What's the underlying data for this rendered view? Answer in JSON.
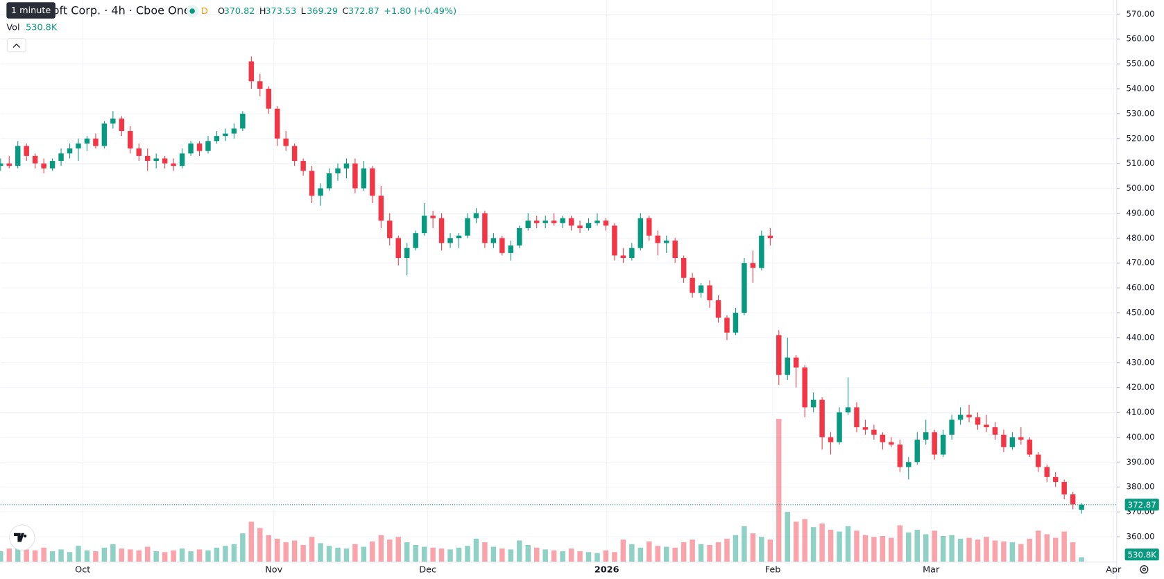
{
  "chart_data": {
    "type": "candlestick",
    "title": "Microsoft Corp. · 4h · Cboe One",
    "tooltip": "1 minute",
    "badge": "D",
    "ohlc_labels": [
      "O",
      "H",
      "L",
      "C"
    ],
    "change": "+1.80 (+0.49%)",
    "up_color": "#089981",
    "down_color": "#f23645",
    "open": [
      509,
      510,
      509,
      517,
      513,
      510,
      508,
      511,
      514,
      516,
      518,
      520,
      517,
      526,
      528,
      523,
      516,
      513,
      511,
      512,
      510,
      509,
      514,
      518,
      515,
      519,
      521,
      522,
      524,
      551,
      543,
      540,
      532,
      520,
      517,
      511,
      507,
      497,
      500,
      506,
      508,
      510,
      500,
      508,
      497,
      487,
      480,
      472,
      476,
      482,
      489,
      488,
      478,
      480,
      481,
      488,
      490,
      478,
      480,
      474,
      477,
      484,
      487,
      486,
      487,
      486,
      488,
      485,
      484,
      486,
      487,
      485,
      473,
      472,
      476,
      488,
      481,
      478,
      479,
      472,
      464,
      458,
      461,
      455,
      448,
      442,
      450,
      470,
      468,
      481,
      441,
      425,
      432,
      428,
      412,
      415,
      400,
      398,
      410,
      412,
      404,
      403,
      401,
      398,
      397,
      388,
      390,
      399,
      402,
      393,
      401,
      407,
      409,
      408,
      405,
      404,
      401,
      396,
      400,
      399,
      393,
      388,
      384,
      382,
      377,
      370.82
    ],
    "high": [
      512,
      513,
      519,
      518,
      514,
      512,
      512,
      516,
      518,
      520,
      521,
      522,
      527,
      531,
      529,
      525,
      518,
      516,
      514,
      513,
      512,
      516,
      519,
      519,
      521,
      523,
      524,
      526,
      531,
      553,
      546,
      541,
      533,
      523,
      518,
      512,
      509,
      502,
      508,
      510,
      512,
      512,
      511,
      509,
      501,
      490,
      481,
      478,
      483,
      494,
      491,
      490,
      482,
      482,
      490,
      492,
      491,
      482,
      481,
      479,
      485,
      490,
      489,
      489,
      490,
      489,
      489,
      487,
      488,
      490,
      488,
      486,
      476,
      478,
      490,
      489,
      483,
      481,
      480,
      473,
      466,
      462,
      463,
      457,
      449,
      452,
      472,
      475,
      483,
      484,
      443,
      440,
      433,
      429,
      418,
      416,
      402,
      412,
      424,
      414,
      407,
      405,
      402,
      400,
      399,
      392,
      402,
      407,
      403,
      403,
      409,
      412,
      413,
      410,
      409,
      406,
      403,
      402,
      404,
      400,
      394,
      389,
      386,
      383,
      378,
      373.53
    ],
    "low": [
      507,
      508,
      508,
      511,
      508,
      506,
      507,
      509,
      512,
      511,
      515,
      516,
      516,
      524,
      521,
      514,
      511,
      507,
      508,
      508,
      507,
      508,
      513,
      513,
      514,
      518,
      519,
      520,
      523,
      540,
      537,
      530,
      517,
      515,
      509,
      505,
      494,
      493,
      499,
      503,
      504,
      498,
      499,
      494,
      484,
      477,
      469,
      465,
      475,
      481,
      484,
      475,
      476,
      476,
      480,
      486,
      476,
      476,
      473,
      471,
      476,
      483,
      484,
      484,
      485,
      484,
      483,
      482,
      483,
      485,
      483,
      471,
      470,
      471,
      475,
      479,
      473,
      474,
      470,
      462,
      456,
      456,
      452,
      446,
      439,
      441,
      449,
      462,
      467,
      477,
      421,
      423,
      420,
      408,
      410,
      395,
      393,
      397,
      409,
      402,
      401,
      399,
      395,
      396,
      386,
      383,
      389,
      397,
      391,
      392,
      399,
      405,
      406,
      403,
      402,
      399,
      394,
      395,
      397,
      392,
      386,
      382,
      380,
      375,
      371,
      369.29
    ],
    "close": [
      510,
      509,
      517,
      513,
      510,
      508,
      511,
      514,
      516,
      518,
      520,
      517,
      526,
      528,
      523,
      516,
      513,
      511,
      512,
      510,
      509,
      514,
      518,
      515,
      519,
      521,
      522,
      524,
      530,
      543,
      540,
      532,
      520,
      517,
      511,
      507,
      497,
      500,
      506,
      508,
      510,
      500,
      508,
      497,
      487,
      480,
      472,
      476,
      482,
      489,
      488,
      478,
      480,
      481,
      488,
      490,
      478,
      480,
      474,
      477,
      484,
      487,
      486,
      487,
      486,
      488,
      485,
      484,
      486,
      487,
      485,
      473,
      472,
      476,
      488,
      481,
      478,
      479,
      472,
      464,
      458,
      461,
      455,
      448,
      442,
      450,
      470,
      468,
      481,
      480,
      425,
      432,
      428,
      412,
      415,
      400,
      398,
      410,
      412,
      404,
      403,
      401,
      398,
      397,
      388,
      390,
      399,
      402,
      393,
      401,
      407,
      409,
      408,
      405,
      404,
      401,
      396,
      400,
      399,
      393,
      388,
      384,
      382,
      377,
      373,
      372.87
    ],
    "volume": {
      "name": "Vol",
      "last_label": "530.8K",
      "values": [
        1200,
        1500,
        2100,
        1400,
        1300,
        1600,
        1200,
        1400,
        1100,
        1800,
        1300,
        1200,
        1600,
        2000,
        1500,
        1400,
        1300,
        1700,
        1200,
        1100,
        1300,
        1500,
        1200,
        1400,
        1300,
        1600,
        1800,
        2000,
        3200,
        4500,
        3800,
        3000,
        2600,
        2200,
        2400,
        1900,
        2800,
        2100,
        1800,
        1600,
        1500,
        2000,
        1700,
        2300,
        3000,
        2500,
        2800,
        2200,
        1900,
        1700,
        1600,
        1500,
        1400,
        1600,
        1800,
        2600,
        2200,
        1700,
        1500,
        1400,
        2400,
        1900,
        1600,
        1400,
        1300,
        1200,
        1500,
        1200,
        1100,
        1000,
        1300,
        1100,
        2500,
        2000,
        1600,
        2300,
        1800,
        1700,
        1600,
        2200,
        2500,
        2000,
        1900,
        2200,
        2600,
        3000,
        4000,
        3200,
        2800,
        2500,
        16000,
        5600,
        4500,
        4800,
        3900,
        4300,
        3600,
        3400,
        4000,
        3500,
        3000,
        2800,
        2900,
        2700,
        4100,
        3300,
        3600,
        3100,
        3500,
        2900,
        3000,
        2600,
        2700,
        2500,
        2800,
        2400,
        2300,
        2200,
        2000,
        2600,
        3500,
        3100,
        2700,
        3400,
        2200,
        530.8
      ]
    },
    "xlim": [
      0,
      129.07
    ],
    "xticks": [
      {
        "value": 9.5,
        "label": "Oct"
      },
      {
        "value": 31.6,
        "label": "Nov"
      },
      {
        "value": 49.4,
        "label": "Dec"
      },
      {
        "value": 70.1,
        "label": "2026"
      },
      {
        "value": 89.3,
        "label": "Feb"
      },
      {
        "value": 107.6,
        "label": "Mar"
      },
      {
        "value": 128.7,
        "label": "Apr"
      }
    ],
    "ylim": [
      349.86,
      575.66
    ],
    "yticks": [
      {
        "value": 360,
        "label": "360.00"
      },
      {
        "value": 370,
        "label": "370.00"
      },
      {
        "value": 380,
        "label": "380.00"
      },
      {
        "value": 390,
        "label": "390.00"
      },
      {
        "value": 400,
        "label": "400.00"
      },
      {
        "value": 410,
        "label": "410.00"
      },
      {
        "value": 420,
        "label": "420.00"
      },
      {
        "value": 430,
        "label": "430.00"
      },
      {
        "value": 440,
        "label": "440.00"
      },
      {
        "value": 450,
        "label": "450.00"
      },
      {
        "value": 460,
        "label": "460.00"
      },
      {
        "value": 470,
        "label": "470.00"
      },
      {
        "value": 480,
        "label": "480.00"
      },
      {
        "value": 490,
        "label": "490.00"
      },
      {
        "value": 500,
        "label": "500.00"
      },
      {
        "value": 510,
        "label": "510.00"
      },
      {
        "value": 520,
        "label": "520.00"
      },
      {
        "value": 530,
        "label": "530.00"
      },
      {
        "value": 540,
        "label": "540.00"
      },
      {
        "value": 550,
        "label": "550.00"
      },
      {
        "value": 560,
        "label": "560.00"
      },
      {
        "value": 570,
        "label": "570.00"
      }
    ],
    "grid": true
  }
}
